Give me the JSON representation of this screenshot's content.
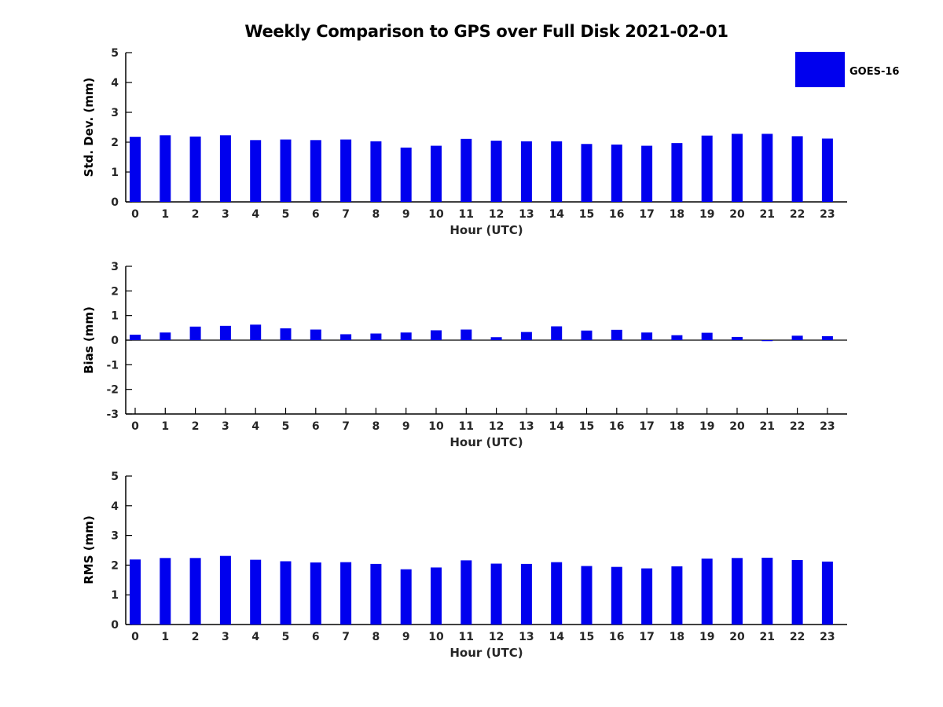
{
  "title": "Weekly Comparison to GPS over Full Disk 2021-02-01",
  "legend": {
    "label": "GOES-16",
    "color": "#0000EE"
  },
  "chart_data": [
    {
      "type": "bar",
      "ylabel": "Std. Dev. (mm)",
      "xlabel": "Hour (UTC)",
      "categories": [
        "0",
        "1",
        "2",
        "3",
        "4",
        "5",
        "6",
        "7",
        "8",
        "9",
        "10",
        "11",
        "12",
        "13",
        "14",
        "15",
        "16",
        "17",
        "18",
        "19",
        "20",
        "21",
        "22",
        "23"
      ],
      "values": [
        2.18,
        2.23,
        2.19,
        2.23,
        2.07,
        2.09,
        2.07,
        2.09,
        2.03,
        1.82,
        1.88,
        2.11,
        2.05,
        2.03,
        2.03,
        1.94,
        1.92,
        1.88,
        1.97,
        2.22,
        2.28,
        2.28,
        2.2,
        2.12
      ],
      "ylim": [
        0,
        5
      ],
      "yticks": [
        0,
        1,
        2,
        3,
        4,
        5
      ],
      "series_name": "GOES-16",
      "bar_color": "#0000EE",
      "grid": false
    },
    {
      "type": "bar",
      "ylabel": "Bias (mm)",
      "xlabel": "Hour (UTC)",
      "categories": [
        "0",
        "1",
        "2",
        "3",
        "4",
        "5",
        "6",
        "7",
        "8",
        "9",
        "10",
        "11",
        "12",
        "13",
        "14",
        "15",
        "16",
        "17",
        "18",
        "19",
        "20",
        "21",
        "22",
        "23"
      ],
      "values": [
        0.22,
        0.31,
        0.55,
        0.58,
        0.63,
        0.48,
        0.43,
        0.24,
        0.27,
        0.31,
        0.4,
        0.43,
        0.12,
        0.33,
        0.56,
        0.39,
        0.42,
        0.31,
        0.2,
        0.3,
        0.13,
        -0.04,
        0.18,
        0.16
      ],
      "ylim": [
        -3,
        3
      ],
      "yticks": [
        -3,
        -2,
        -1,
        0,
        1,
        2,
        3
      ],
      "series_name": "GOES-16",
      "bar_color": "#0000EE",
      "grid": false
    },
    {
      "type": "bar",
      "ylabel": "RMS (mm)",
      "xlabel": "Hour (UTC)",
      "categories": [
        "0",
        "1",
        "2",
        "3",
        "4",
        "5",
        "6",
        "7",
        "8",
        "9",
        "10",
        "11",
        "12",
        "13",
        "14",
        "15",
        "16",
        "17",
        "18",
        "19",
        "20",
        "21",
        "22",
        "23"
      ],
      "values": [
        2.19,
        2.24,
        2.24,
        2.31,
        2.18,
        2.13,
        2.09,
        2.1,
        2.04,
        1.86,
        1.92,
        2.16,
        2.05,
        2.04,
        2.1,
        1.97,
        1.94,
        1.89,
        1.96,
        2.22,
        2.24,
        2.25,
        2.17,
        2.12
      ],
      "ylim": [
        0,
        5
      ],
      "yticks": [
        0,
        1,
        2,
        3,
        4,
        5
      ],
      "series_name": "GOES-16",
      "bar_color": "#0000EE",
      "grid": false
    }
  ]
}
